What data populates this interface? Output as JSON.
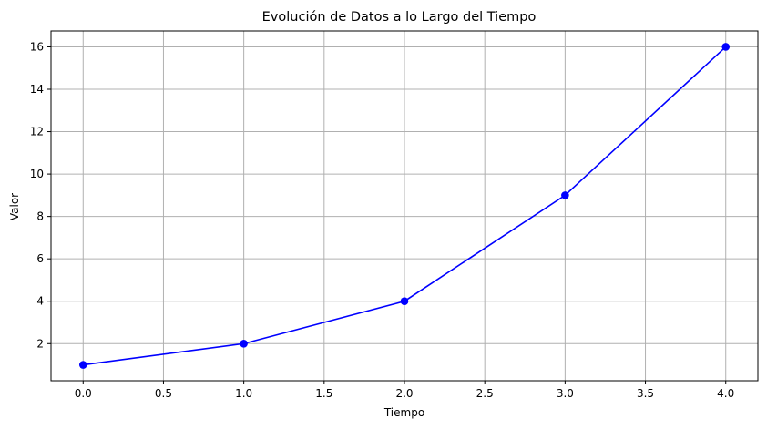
{
  "chart_data": {
    "type": "line",
    "title": "Evolución de Datos a lo Largo del Tiempo",
    "xlabel": "Tiempo",
    "ylabel": "Valor",
    "x": [
      0,
      1,
      2,
      3,
      4
    ],
    "series": [
      {
        "values": [
          1,
          2,
          4,
          9,
          16
        ],
        "color": "#0000ff",
        "marker": "circle"
      }
    ],
    "xlim": [
      -0.2,
      4.2
    ],
    "ylim": [
      0.25,
      16.75
    ],
    "xticks": [
      0.0,
      0.5,
      1.0,
      1.5,
      2.0,
      2.5,
      3.0,
      3.5,
      4.0
    ],
    "xtick_labels": [
      "0.0",
      "0.5",
      "1.0",
      "1.5",
      "2.0",
      "2.5",
      "3.0",
      "3.5",
      "4.0"
    ],
    "yticks": [
      2,
      4,
      6,
      8,
      10,
      12,
      14,
      16
    ],
    "ytick_labels": [
      "2",
      "4",
      "6",
      "8",
      "10",
      "12",
      "14",
      "16"
    ],
    "grid": true,
    "grid_color": "#b0b0b0",
    "legend": false
  }
}
